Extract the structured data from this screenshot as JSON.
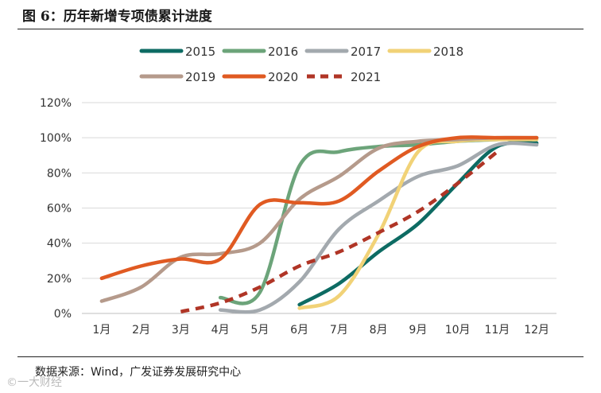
{
  "figure": {
    "title": "图 6：历年新增专项债累计进度",
    "source": "数据来源：Wind，广发证券发展研究中心",
    "watermark": "©一大财经"
  },
  "chart_data": {
    "type": "line",
    "x": [
      "1月",
      "2月",
      "3月",
      "4月",
      "5月",
      "6月",
      "7月",
      "8月",
      "9月",
      "10月",
      "11月",
      "12月"
    ],
    "ylim": [
      0,
      120
    ],
    "yticks": [
      "0%",
      "20%",
      "40%",
      "60%",
      "80%",
      "100%",
      "120%"
    ],
    "grid": true,
    "legend_position": "top",
    "series": [
      {
        "name": "2015",
        "color": "#0d6b63",
        "dashed": false,
        "values": [
          null,
          null,
          null,
          null,
          null,
          5,
          17,
          35,
          51,
          74,
          95,
          97
        ]
      },
      {
        "name": "2016",
        "color": "#6ca47a",
        "dashed": false,
        "values": [
          null,
          null,
          null,
          9,
          12,
          84,
          92,
          95,
          96,
          98,
          99,
          100
        ]
      },
      {
        "name": "2017",
        "color": "#a3a9ae",
        "dashed": false,
        "values": [
          null,
          null,
          null,
          2,
          2,
          18,
          48,
          64,
          78,
          84,
          96,
          96
        ]
      },
      {
        "name": "2018",
        "color": "#f1d277",
        "dashed": false,
        "values": [
          null,
          null,
          null,
          null,
          null,
          3,
          10,
          45,
          92,
          98,
          99,
          99
        ]
      },
      {
        "name": "2019",
        "color": "#b59a8b",
        "dashed": false,
        "values": [
          7,
          15,
          32,
          34,
          40,
          65,
          78,
          94,
          98,
          99,
          100,
          100
        ]
      },
      {
        "name": "2020",
        "color": "#e05a22",
        "dashed": false,
        "values": [
          20,
          27,
          31,
          31,
          62,
          63,
          64,
          81,
          95,
          100,
          100,
          100
        ]
      },
      {
        "name": "2021",
        "color": "#b03526",
        "dashed": true,
        "values": [
          null,
          null,
          1,
          6,
          15,
          27,
          35,
          46,
          58,
          74,
          92,
          null
        ]
      }
    ]
  }
}
